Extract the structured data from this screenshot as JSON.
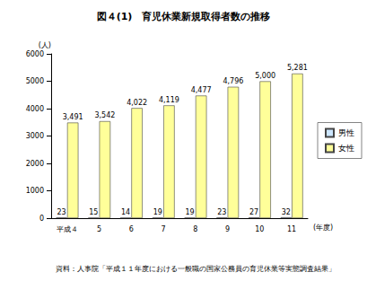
{
  "chart_data": {
    "type": "bar",
    "title": "図４(1)　育児休業新規取得者数の推移",
    "ylabel": "(人)",
    "xlabel": "(年度)",
    "annotations": [
      "資料：人事院「平成１１年度における一般職の国家公務員の育児休業等実態調査結果」"
    ],
    "categories": [
      "平成４",
      "5",
      "6",
      "7",
      "8",
      "9",
      "10",
      "11"
    ],
    "series": [
      {
        "name": "男性",
        "color": "#cce6ff",
        "values": [
          23,
          15,
          14,
          19,
          19,
          23,
          27,
          32
        ]
      },
      {
        "name": "女性",
        "color": "#ffff99",
        "values": [
          3491,
          3542,
          4022,
          4119,
          4477,
          4796,
          5000,
          5281
        ],
        "value_labels": [
          "3,491",
          "3,542",
          "4,022",
          "4,119",
          "4,477",
          "4,796",
          "5,000",
          "5,281"
        ]
      }
    ],
    "ylim": [
      0,
      6000
    ],
    "yticks": [
      0,
      1000,
      2000,
      3000,
      4000,
      5000,
      6000
    ],
    "grid": false,
    "legend": "right",
    "data_labels": true
  }
}
